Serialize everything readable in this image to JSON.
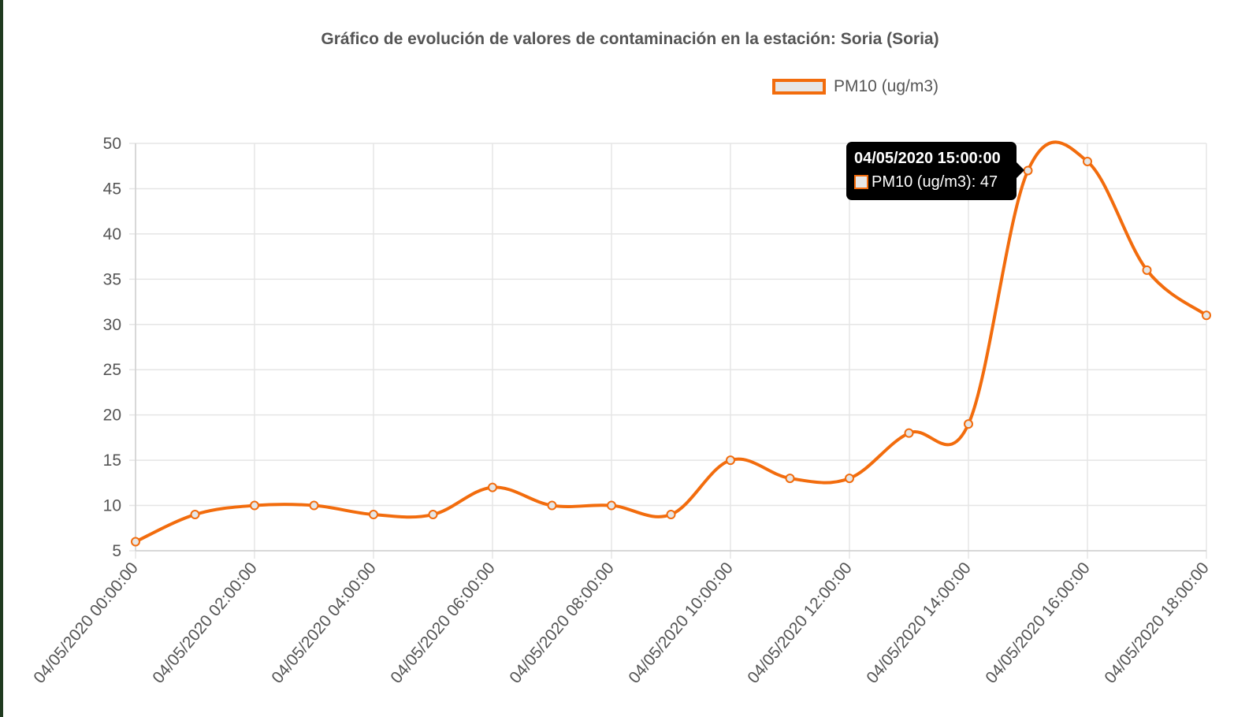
{
  "chart_data": {
    "type": "line",
    "title": "Gráfico de evolución de valores de contaminación en la estación: Soria (Soria)",
    "x": [
      "04/05/2020 00:00:00",
      "04/05/2020 01:00:00",
      "04/05/2020 02:00:00",
      "04/05/2020 03:00:00",
      "04/05/2020 04:00:00",
      "04/05/2020 05:00:00",
      "04/05/2020 06:00:00",
      "04/05/2020 07:00:00",
      "04/05/2020 08:00:00",
      "04/05/2020 09:00:00",
      "04/05/2020 10:00:00",
      "04/05/2020 11:00:00",
      "04/05/2020 12:00:00",
      "04/05/2020 13:00:00",
      "04/05/2020 14:00:00",
      "04/05/2020 15:00:00",
      "04/05/2020 16:00:00",
      "04/05/2020 17:00:00",
      "04/05/2020 18:00:00"
    ],
    "x_tick_labels": [
      "04/05/2020 00:00:00",
      "04/05/2020 02:00:00",
      "04/05/2020 04:00:00",
      "04/05/2020 06:00:00",
      "04/05/2020 08:00:00",
      "04/05/2020 10:00:00",
      "04/05/2020 12:00:00",
      "04/05/2020 14:00:00",
      "04/05/2020 16:00:00",
      "04/05/2020 18:00:00"
    ],
    "series": [
      {
        "name": "PM10 (ug/m3)",
        "values": [
          6,
          9,
          10,
          10,
          9,
          9,
          12,
          10,
          10,
          9,
          15,
          13,
          13,
          18,
          19,
          47,
          48,
          36,
          31
        ],
        "color": "#f26c0d",
        "fill": "#e6e6e6"
      }
    ],
    "ylim": [
      5,
      50
    ],
    "y_ticks": [
      5,
      10,
      15,
      20,
      25,
      30,
      35,
      40,
      45,
      50
    ],
    "grid": true,
    "legend": "top-right",
    "tooltip": {
      "title": "04/05/2020 15:00:00",
      "label": "PM10 (ug/m3): 47",
      "index": 15
    }
  }
}
